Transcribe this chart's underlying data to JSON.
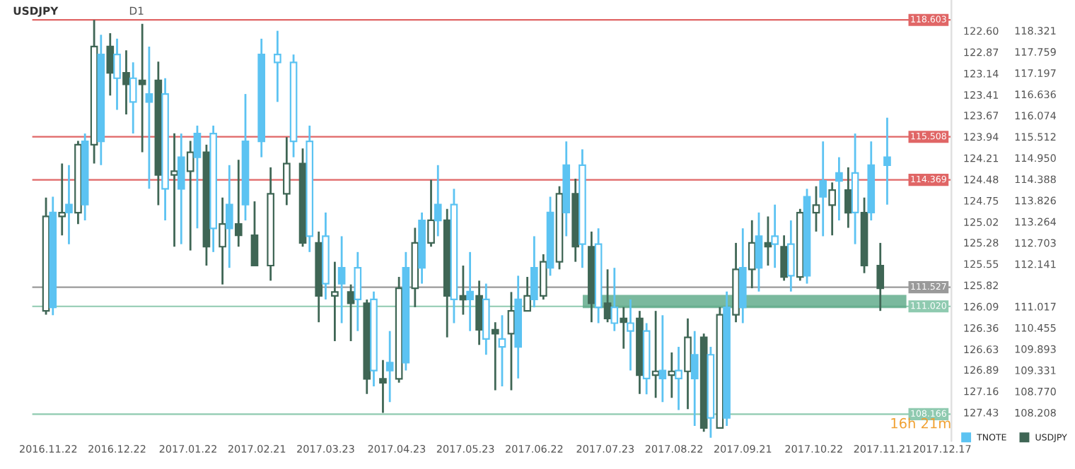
{
  "chart_data": {
    "type": "candlestick",
    "title": "USDJPY",
    "annotations": [
      "D1",
      "16h 21m"
    ],
    "x": [
      "2016-11-21",
      "2016-11-28",
      "2016-12-05",
      "2016-12-12",
      "2016-12-19",
      "2016-12-26",
      "2017-01-02",
      "2017-01-09",
      "2017-01-16",
      "2017-01-23",
      "2017-01-30",
      "2017-02-06",
      "2017-02-13",
      "2017-02-20",
      "2017-02-27",
      "2017-03-06",
      "2017-03-13",
      "2017-03-20",
      "2017-03-27",
      "2017-04-03",
      "2017-04-10",
      "2017-04-17",
      "2017-04-24",
      "2017-05-01",
      "2017-05-08",
      "2017-05-15",
      "2017-05-22",
      "2017-05-29",
      "2017-06-05",
      "2017-06-12",
      "2017-06-19",
      "2017-06-26",
      "2017-07-03",
      "2017-07-10",
      "2017-07-17",
      "2017-07-24",
      "2017-07-31",
      "2017-08-07",
      "2017-08-14",
      "2017-08-21",
      "2017-08-28",
      "2017-09-04",
      "2017-09-11",
      "2017-09-18",
      "2017-09-25",
      "2017-10-02",
      "2017-10-09",
      "2017-10-16",
      "2017-10-23",
      "2017-10-30",
      "2017-11-06",
      "2017-11-13",
      "2017-11-20"
    ],
    "series": [
      {
        "name": "TNOTE",
        "color": "#5cc3f2",
        "axis": "y2",
        "x": [
          "2016-11-24",
          "2016-12-01",
          "2016-12-08",
          "2016-12-15",
          "2016-12-22",
          "2016-12-29",
          "2017-01-05",
          "2017-01-12",
          "2017-01-19",
          "2017-01-26",
          "2017-02-02",
          "2017-02-09",
          "2017-02-16",
          "2017-02-23",
          "2017-03-02",
          "2017-03-09",
          "2017-03-16",
          "2017-03-23",
          "2017-03-30",
          "2017-04-06",
          "2017-04-13",
          "2017-04-20",
          "2017-04-27",
          "2017-05-04",
          "2017-05-11",
          "2017-05-18",
          "2017-05-25",
          "2017-06-01",
          "2017-06-08",
          "2017-06-15",
          "2017-06-22",
          "2017-06-29",
          "2017-07-06",
          "2017-07-13",
          "2017-07-20",
          "2017-07-27",
          "2017-08-03",
          "2017-08-10",
          "2017-08-17",
          "2017-08-24",
          "2017-08-31",
          "2017-09-07",
          "2017-09-14",
          "2017-09-21",
          "2017-09-28",
          "2017-10-05",
          "2017-10-12",
          "2017-10-19",
          "2017-10-26",
          "2017-11-02",
          "2017-11-09",
          "2017-11-16",
          "2017-11-23"
        ],
        "ohlc": [
          [
            126.1,
            126.2,
            124.7,
            124.9
          ],
          [
            124.9,
            125.3,
            124.3,
            124.8
          ],
          [
            124.8,
            125.0,
            123.9,
            124.0
          ],
          [
            124.0,
            124.3,
            122.65,
            122.9
          ],
          [
            122.9,
            123.6,
            122.7,
            123.2
          ],
          [
            123.2,
            123.9,
            123.0,
            123.5
          ],
          [
            123.5,
            124.6,
            122.8,
            123.4
          ],
          [
            123.4,
            125.0,
            123.2,
            124.6
          ],
          [
            124.6,
            125.3,
            123.9,
            124.2
          ],
          [
            124.2,
            125.1,
            123.8,
            123.9
          ],
          [
            123.9,
            125.4,
            123.8,
            125.1
          ],
          [
            125.1,
            125.6,
            124.3,
            124.8
          ],
          [
            124.8,
            125.0,
            123.4,
            124.0
          ],
          [
            124.0,
            124.2,
            122.7,
            122.9
          ],
          [
            122.9,
            123.5,
            122.6,
            123.0
          ],
          [
            123.0,
            124.2,
            122.9,
            124.0
          ],
          [
            124.0,
            125.4,
            123.8,
            125.2
          ],
          [
            125.2,
            126.0,
            124.9,
            125.8
          ],
          [
            125.8,
            126.3,
            125.2,
            125.6
          ],
          [
            125.6,
            126.4,
            125.4,
            126.0
          ],
          [
            126.0,
            127.1,
            125.9,
            126.9
          ],
          [
            126.9,
            127.3,
            126.4,
            126.8
          ],
          [
            126.8,
            126.9,
            125.4,
            125.6
          ],
          [
            125.6,
            125.8,
            124.9,
            125.0
          ],
          [
            125.0,
            125.2,
            124.3,
            124.8
          ],
          [
            124.8,
            126.3,
            124.6,
            126.0
          ],
          [
            126.0,
            126.4,
            125.4,
            125.9
          ],
          [
            126.0,
            126.7,
            125.8,
            126.5
          ],
          [
            126.5,
            127.1,
            126.2,
            126.6
          ],
          [
            126.6,
            127.0,
            125.7,
            126.0
          ],
          [
            126.0,
            126.1,
            125.2,
            125.6
          ],
          [
            125.6,
            125.7,
            124.7,
            124.9
          ],
          [
            124.9,
            125.2,
            124.0,
            124.3
          ],
          [
            124.3,
            125.6,
            124.1,
            125.3
          ],
          [
            125.3,
            126.3,
            125.1,
            126.1
          ],
          [
            126.1,
            126.4,
            125.6,
            126.3
          ],
          [
            126.3,
            126.9,
            126.0,
            126.4
          ],
          [
            126.4,
            127.2,
            126.3,
            127.0
          ],
          [
            127.0,
            127.3,
            126.2,
            126.9
          ],
          [
            126.9,
            127.4,
            126.6,
            127.0
          ],
          [
            127.0,
            127.6,
            126.4,
            126.7
          ],
          [
            126.7,
            127.75,
            126.6,
            127.5
          ],
          [
            127.5,
            127.6,
            125.9,
            126.1
          ],
          [
            126.1,
            126.3,
            125.1,
            125.6
          ],
          [
            125.6,
            125.9,
            124.9,
            125.2
          ],
          [
            125.2,
            125.6,
            124.8,
            125.3
          ],
          [
            125.3,
            125.9,
            125.0,
            125.7
          ],
          [
            125.7,
            125.8,
            124.6,
            124.7
          ],
          [
            124.7,
            125.2,
            124.0,
            124.5
          ],
          [
            124.5,
            125.0,
            124.2,
            124.4
          ],
          [
            124.4,
            125.3,
            123.9,
            124.9
          ],
          [
            124.9,
            125.0,
            124.0,
            124.3
          ],
          [
            124.3,
            124.8,
            123.7,
            124.2
          ]
        ]
      },
      {
        "name": "USDJPY",
        "color": "#3f6655",
        "ohlc": [
          [
            110.9,
            113.9,
            110.8,
            113.4
          ],
          [
            113.4,
            114.8,
            112.9,
            113.5
          ],
          [
            113.5,
            115.4,
            113.2,
            115.3
          ],
          [
            115.3,
            118.6,
            114.8,
            117.9
          ],
          [
            117.9,
            118.25,
            116.6,
            117.2
          ],
          [
            117.2,
            117.8,
            116.1,
            116.9
          ],
          [
            117.0,
            118.5,
            115.1,
            116.9
          ],
          [
            117.0,
            117.5,
            113.7,
            114.5
          ],
          [
            114.5,
            115.6,
            112.6,
            114.6
          ],
          [
            114.6,
            115.4,
            112.5,
            115.1
          ],
          [
            115.1,
            115.3,
            112.1,
            112.6
          ],
          [
            112.6,
            113.9,
            111.6,
            113.2
          ],
          [
            113.2,
            114.9,
            112.6,
            112.9
          ],
          [
            112.9,
            113.8,
            112.1,
            112.1
          ],
          [
            112.1,
            114.7,
            111.7,
            114.0
          ],
          [
            114.0,
            115.5,
            113.7,
            114.8
          ],
          [
            114.8,
            115.2,
            112.6,
            112.7
          ],
          [
            112.7,
            113.0,
            110.6,
            111.3
          ],
          [
            111.3,
            112.2,
            110.1,
            111.4
          ],
          [
            111.4,
            111.6,
            110.1,
            111.1
          ],
          [
            111.1,
            111.2,
            108.7,
            109.1
          ],
          [
            109.1,
            109.6,
            108.2,
            109.0
          ],
          [
            109.1,
            111.8,
            109.0,
            111.5
          ],
          [
            111.5,
            113.1,
            111.0,
            112.7
          ],
          [
            112.7,
            114.37,
            112.6,
            113.3
          ],
          [
            113.3,
            113.6,
            110.2,
            111.3
          ],
          [
            111.3,
            112.1,
            110.8,
            111.2
          ],
          [
            111.3,
            111.7,
            110.0,
            110.4
          ],
          [
            110.4,
            110.6,
            108.8,
            110.3
          ],
          [
            110.3,
            111.4,
            108.8,
            110.9
          ],
          [
            110.9,
            111.8,
            110.9,
            111.3
          ],
          [
            111.3,
            112.4,
            111.2,
            112.2
          ],
          [
            112.2,
            114.2,
            112.0,
            114.0
          ],
          [
            114.0,
            114.4,
            112.2,
            112.6
          ],
          [
            112.6,
            113.0,
            110.6,
            111.1
          ],
          [
            111.1,
            112.0,
            110.6,
            110.7
          ],
          [
            110.7,
            111.0,
            109.9,
            110.6
          ],
          [
            110.7,
            110.9,
            108.7,
            109.2
          ],
          [
            109.2,
            110.9,
            108.6,
            109.3
          ],
          [
            109.2,
            109.8,
            108.6,
            109.3
          ],
          [
            109.3,
            110.7,
            108.3,
            110.2
          ],
          [
            110.2,
            110.3,
            107.7,
            107.8
          ],
          [
            107.8,
            111.0,
            107.8,
            110.8
          ],
          [
            110.8,
            112.7,
            110.6,
            112.0
          ],
          [
            112.0,
            113.3,
            111.5,
            112.7
          ],
          [
            112.7,
            113.4,
            112.1,
            112.6
          ],
          [
            112.6,
            112.9,
            111.7,
            111.8
          ],
          [
            111.8,
            113.6,
            111.7,
            113.5
          ],
          [
            113.5,
            114.2,
            113.0,
            113.7
          ],
          [
            113.7,
            114.3,
            112.9,
            114.1
          ],
          [
            114.1,
            114.7,
            113.1,
            113.5
          ],
          [
            113.5,
            113.9,
            111.9,
            112.1
          ],
          [
            112.1,
            112.7,
            110.9,
            111.5
          ]
        ]
      }
    ],
    "xlim": [
      "2016-11-15",
      "2017-12-21"
    ],
    "xticks": [
      {
        "value": "2016-11-22",
        "label": "2016.11.22"
      },
      {
        "value": "2016-12-22",
        "label": "2016.12.22"
      },
      {
        "value": "2017-01-22",
        "label": "2017.01.22"
      },
      {
        "value": "2017-02-21",
        "label": "2017.02.21"
      },
      {
        "value": "2017-03-23",
        "label": "2017.03.23"
      },
      {
        "value": "2017-04-23",
        "label": "2017.04.23"
      },
      {
        "value": "2017-05-23",
        "label": "2017.05.23"
      },
      {
        "value": "2017-06-22",
        "label": "2017.06.22"
      },
      {
        "value": "2017-07-23",
        "label": "2017.07.23"
      },
      {
        "value": "2017-08-22",
        "label": "2017.08.22"
      },
      {
        "value": "2017-09-21",
        "label": "2017.09.21"
      },
      {
        "value": "2017-10-22",
        "label": "2017.10.22"
      },
      {
        "value": "2017-11-21",
        "label": "2017.11.21"
      },
      {
        "value": "2017-12-17",
        "label": "2017.12.17"
      }
    ],
    "ylim": [
      107.46,
      119.13
    ],
    "yticks": [
      118.321,
      117.759,
      117.197,
      116.636,
      116.074,
      115.512,
      {
        "value": 114.95,
        "label": "114.950"
      },
      114.388,
      113.826,
      113.264,
      112.703,
      112.141,
      111.017,
      110.455,
      109.893,
      109.331,
      {
        "value": 108.77,
        "label": "108.770"
      },
      108.208
    ],
    "y2lim": [
      127.79,
      122.21
    ],
    "y2ticks": [
      {
        "value": 122.6,
        "label": "122.60"
      },
      122.87,
      123.14,
      123.41,
      123.67,
      123.94,
      124.21,
      124.48,
      124.75,
      125.02,
      125.28,
      125.55,
      125.82,
      126.09,
      126.36,
      126.63,
      126.89,
      127.16,
      127.43
    ],
    "ref_lines": [
      {
        "axis": "y",
        "value": 118.603,
        "label": "118.603",
        "color": "#e06666"
      },
      {
        "axis": "y",
        "value": 115.508,
        "label": "115.508",
        "color": "#e06666"
      },
      {
        "axis": "y",
        "value": 114.369,
        "label": "114.369",
        "color": "#e06666"
      },
      {
        "axis": "y",
        "value": 111.527,
        "label": "111.527",
        "color": "#9a9a9a"
      },
      {
        "axis": "y",
        "value": 111.02,
        "label": "111.020",
        "color": "#8fcab0"
      },
      {
        "axis": "y",
        "value": 108.166,
        "label": "108.166",
        "color": "#8fcab0"
      }
    ],
    "bands": [
      {
        "axis": "y",
        "from": 111.0,
        "to": 111.3,
        "color": "#5aa886"
      }
    ],
    "legend": "bottom right"
  }
}
